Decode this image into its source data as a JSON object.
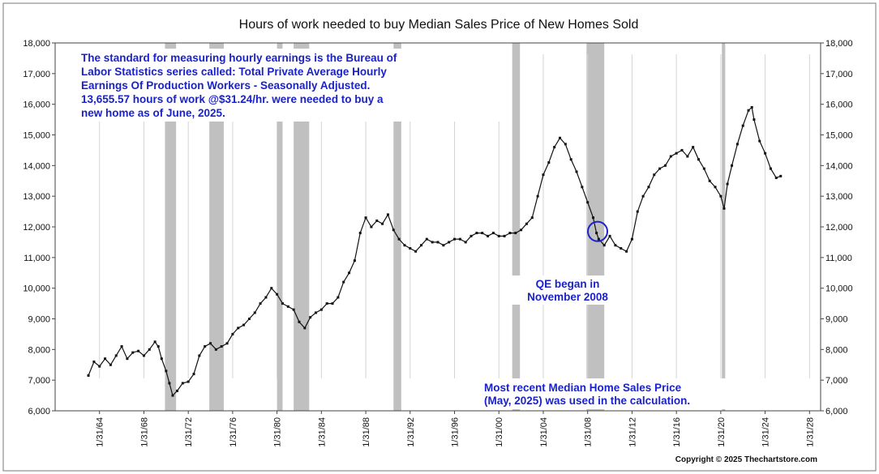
{
  "chart_data": {
    "type": "line",
    "title": "Hours of work needed to buy Median Sales Price of New Homes Sold",
    "ylim": [
      6000,
      18000
    ],
    "y_ticks": [
      {
        "value": 6000,
        "label": "6,000"
      },
      {
        "value": 7000,
        "label": "7,000"
      },
      {
        "value": 8000,
        "label": "8,000"
      },
      {
        "value": 9000,
        "label": "9,000"
      },
      {
        "value": 10000,
        "label": "10,000"
      },
      {
        "value": 11000,
        "label": "11,000"
      },
      {
        "value": 12000,
        "label": "12,000"
      },
      {
        "value": 13000,
        "label": "13,000"
      },
      {
        "value": 14000,
        "label": "14,000"
      },
      {
        "value": 15000,
        "label": "15,000"
      },
      {
        "value": 16000,
        "label": "16,000"
      },
      {
        "value": 17000,
        "label": "17,000"
      },
      {
        "value": 18000,
        "label": "18,000"
      }
    ],
    "xlim": [
      1960,
      2029
    ],
    "x_ticks": [
      {
        "value": 1964,
        "label": "1/31/64"
      },
      {
        "value": 1968,
        "label": "1/31/68"
      },
      {
        "value": 1972,
        "label": "1/31/72"
      },
      {
        "value": 1976,
        "label": "1/31/76"
      },
      {
        "value": 1980,
        "label": "1/31/80"
      },
      {
        "value": 1984,
        "label": "1/31/84"
      },
      {
        "value": 1988,
        "label": "1/31/88"
      },
      {
        "value": 1992,
        "label": "1/31/92"
      },
      {
        "value": 1996,
        "label": "1/31/96"
      },
      {
        "value": 2000,
        "label": "1/31/00"
      },
      {
        "value": 2004,
        "label": "1/31/04"
      },
      {
        "value": 2008,
        "label": "1/31/08"
      },
      {
        "value": 2012,
        "label": "1/31/12"
      },
      {
        "value": 2016,
        "label": "1/31/16"
      },
      {
        "value": 2020,
        "label": "1/31/20"
      },
      {
        "value": 2024,
        "label": "1/31/24"
      },
      {
        "value": 2028,
        "label": "1/31/28"
      }
    ],
    "recessions": [
      [
        1969.9,
        1970.9
      ],
      [
        1973.9,
        1975.2
      ],
      [
        1980.0,
        1980.5
      ],
      [
        1981.5,
        1982.9
      ],
      [
        1990.5,
        1991.2
      ],
      [
        2001.2,
        2001.9
      ],
      [
        2007.9,
        2009.5
      ],
      [
        2020.1,
        2020.4
      ]
    ],
    "series": [
      {
        "name": "Hours of work",
        "color": "#111111",
        "points": [
          [
            1963.0,
            7150
          ],
          [
            1963.5,
            7600
          ],
          [
            1964.0,
            7450
          ],
          [
            1964.5,
            7700
          ],
          [
            1965.0,
            7500
          ],
          [
            1965.5,
            7800
          ],
          [
            1966.0,
            8100
          ],
          [
            1966.5,
            7700
          ],
          [
            1967.0,
            7900
          ],
          [
            1967.5,
            7950
          ],
          [
            1968.0,
            7800
          ],
          [
            1968.5,
            8000
          ],
          [
            1969.0,
            8250
          ],
          [
            1969.3,
            8100
          ],
          [
            1969.6,
            7700
          ],
          [
            1970.0,
            7300
          ],
          [
            1970.3,
            6900
          ],
          [
            1970.6,
            6500
          ],
          [
            1971.0,
            6650
          ],
          [
            1971.5,
            6900
          ],
          [
            1972.0,
            6950
          ],
          [
            1972.5,
            7200
          ],
          [
            1973.0,
            7800
          ],
          [
            1973.5,
            8100
          ],
          [
            1974.0,
            8200
          ],
          [
            1974.5,
            8000
          ],
          [
            1975.0,
            8100
          ],
          [
            1975.5,
            8200
          ],
          [
            1976.0,
            8500
          ],
          [
            1976.5,
            8700
          ],
          [
            1977.0,
            8800
          ],
          [
            1977.5,
            9000
          ],
          [
            1978.0,
            9200
          ],
          [
            1978.5,
            9500
          ],
          [
            1979.0,
            9700
          ],
          [
            1979.5,
            10000
          ],
          [
            1980.0,
            9800
          ],
          [
            1980.5,
            9500
          ],
          [
            1981.0,
            9400
          ],
          [
            1981.5,
            9300
          ],
          [
            1982.0,
            8900
          ],
          [
            1982.5,
            8700
          ],
          [
            1983.0,
            9050
          ],
          [
            1983.5,
            9200
          ],
          [
            1984.0,
            9300
          ],
          [
            1984.5,
            9500
          ],
          [
            1985.0,
            9500
          ],
          [
            1985.5,
            9700
          ],
          [
            1986.0,
            10200
          ],
          [
            1986.5,
            10500
          ],
          [
            1987.0,
            10900
          ],
          [
            1987.5,
            11800
          ],
          [
            1988.0,
            12300
          ],
          [
            1988.5,
            12000
          ],
          [
            1989.0,
            12200
          ],
          [
            1989.5,
            12100
          ],
          [
            1990.0,
            12400
          ],
          [
            1990.5,
            11900
          ],
          [
            1991.0,
            11600
          ],
          [
            1991.5,
            11400
          ],
          [
            1992.0,
            11300
          ],
          [
            1992.5,
            11200
          ],
          [
            1993.0,
            11400
          ],
          [
            1993.5,
            11600
          ],
          [
            1994.0,
            11500
          ],
          [
            1994.5,
            11500
          ],
          [
            1995.0,
            11400
          ],
          [
            1995.5,
            11500
          ],
          [
            1996.0,
            11600
          ],
          [
            1996.5,
            11600
          ],
          [
            1997.0,
            11500
          ],
          [
            1997.5,
            11700
          ],
          [
            1998.0,
            11800
          ],
          [
            1998.5,
            11800
          ],
          [
            1999.0,
            11700
          ],
          [
            1999.5,
            11800
          ],
          [
            2000.0,
            11700
          ],
          [
            2000.5,
            11700
          ],
          [
            2001.0,
            11800
          ],
          [
            2001.5,
            11800
          ],
          [
            2002.0,
            11900
          ],
          [
            2002.5,
            12100
          ],
          [
            2003.0,
            12300
          ],
          [
            2003.5,
            13000
          ],
          [
            2004.0,
            13700
          ],
          [
            2004.5,
            14100
          ],
          [
            2005.0,
            14600
          ],
          [
            2005.5,
            14900
          ],
          [
            2006.0,
            14700
          ],
          [
            2006.5,
            14200
          ],
          [
            2007.0,
            13800
          ],
          [
            2007.5,
            13300
          ],
          [
            2008.0,
            12800
          ],
          [
            2008.5,
            12300
          ],
          [
            2008.8,
            11800
          ],
          [
            2009.0,
            11600
          ],
          [
            2009.5,
            11400
          ],
          [
            2010.0,
            11700
          ],
          [
            2010.5,
            11400
          ],
          [
            2011.0,
            11300
          ],
          [
            2011.5,
            11200
          ],
          [
            2012.0,
            11600
          ],
          [
            2012.5,
            12500
          ],
          [
            2013.0,
            13000
          ],
          [
            2013.5,
            13300
          ],
          [
            2014.0,
            13700
          ],
          [
            2014.5,
            13900
          ],
          [
            2015.0,
            14000
          ],
          [
            2015.5,
            14300
          ],
          [
            2016.0,
            14400
          ],
          [
            2016.5,
            14500
          ],
          [
            2017.0,
            14300
          ],
          [
            2017.5,
            14600
          ],
          [
            2018.0,
            14200
          ],
          [
            2018.5,
            13900
          ],
          [
            2019.0,
            13500
          ],
          [
            2019.5,
            13300
          ],
          [
            2020.0,
            13000
          ],
          [
            2020.3,
            12600
          ],
          [
            2020.6,
            13400
          ],
          [
            2021.0,
            14000
          ],
          [
            2021.5,
            14700
          ],
          [
            2022.0,
            15300
          ],
          [
            2022.5,
            15800
          ],
          [
            2022.8,
            15900
          ],
          [
            2023.0,
            15500
          ],
          [
            2023.5,
            14800
          ],
          [
            2024.0,
            14400
          ],
          [
            2024.5,
            13900
          ],
          [
            2025.0,
            13600
          ],
          [
            2025.4,
            13656
          ]
        ]
      }
    ]
  },
  "annotations": {
    "note_lines": [
      "The standard for measuring hourly earnings is the Bureau of",
      "Labor Statistics series called:  Total Private Average Hourly",
      "Earnings Of Production Workers - Seasonally Adjusted.",
      "13,655.57 hours of work @$31.24/hr. were needed to buy a",
      "new home as of June, 2025."
    ],
    "qe_lines": [
      "QE began in",
      "November 2008"
    ],
    "qe_marker": {
      "x": 2008.9,
      "y": 11850
    },
    "recent_lines": [
      "Most recent Median Home Sales Price",
      "(May, 2025) was used in the calculation."
    ],
    "copyright": "Copyright © 2025 Thechartstore.com"
  },
  "colors": {
    "note": "#1a22c8",
    "series": "#111111",
    "recession": "#c0c0c0",
    "plot_border": "#444444"
  }
}
